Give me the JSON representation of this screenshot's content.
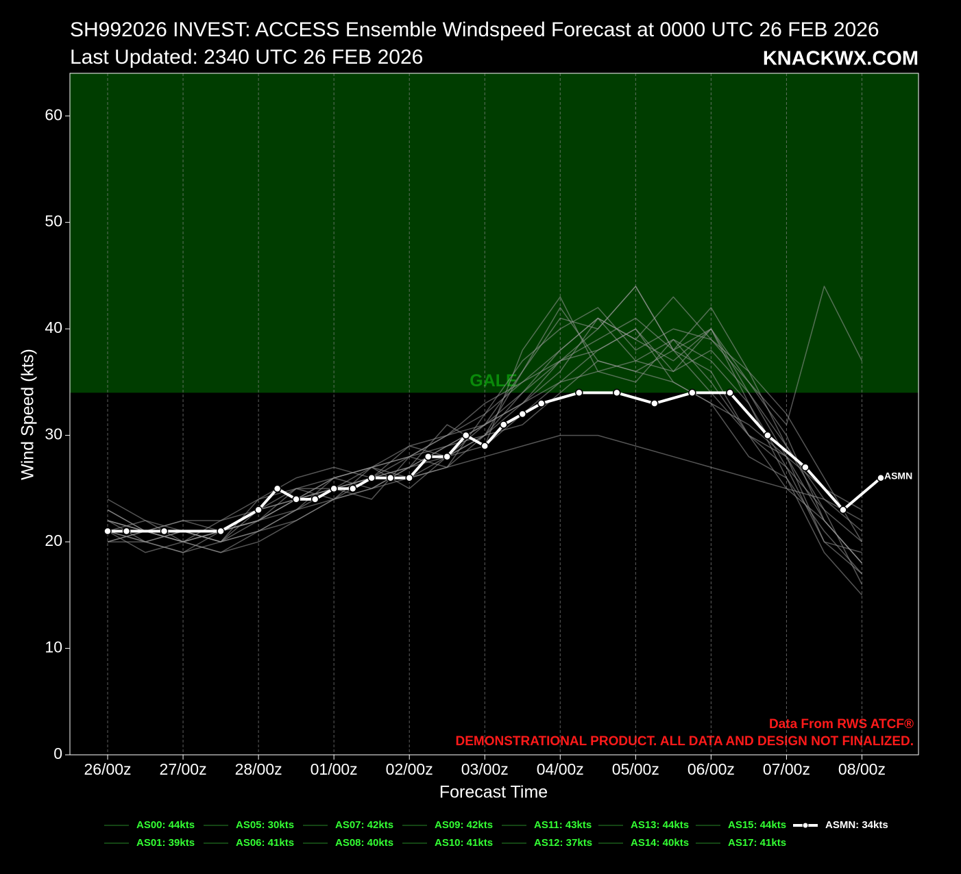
{
  "chart_data": {
    "type": "line",
    "title": "SH992026 INVEST: ACCESS Ensemble Windspeed Forecast at 0000 UTC 26 FEB 2026",
    "subtitle": "Last Updated: 2340 UTC 26 FEB 2026",
    "brand": "KNACKWX.COM",
    "x_label": "Forecast Time",
    "y_label": "Wind Speed (kts)",
    "xlim": [
      -12,
      258
    ],
    "ylim": [
      0,
      64
    ],
    "xticks": [
      {
        "value": 0,
        "label": "26/00z"
      },
      {
        "value": 24,
        "label": "27/00z"
      },
      {
        "value": 48,
        "label": "28/00z"
      },
      {
        "value": 72,
        "label": "01/00z"
      },
      {
        "value": 96,
        "label": "02/00z"
      },
      {
        "value": 120,
        "label": "03/00z"
      },
      {
        "value": 144,
        "label": "04/00z"
      },
      {
        "value": 168,
        "label": "05/00z"
      },
      {
        "value": 192,
        "label": "06/00z"
      },
      {
        "value": 216,
        "label": "07/00z"
      },
      {
        "value": 240,
        "label": "08/00z"
      }
    ],
    "yticks": [
      0,
      10,
      20,
      30,
      40,
      50,
      60
    ],
    "grid": "x",
    "gale": {
      "label": "GALE",
      "value": 34,
      "color": "#003d00"
    },
    "annotations": [
      "Data From RWS ATCF®",
      "DEMONSTRATIONAL PRODUCT. ALL DATA AND DESIGN NOT FINALIZED."
    ],
    "end_label": "ASMN",
    "member_x": [
      0,
      12,
      24,
      36,
      48,
      60,
      72,
      84,
      96,
      108,
      120,
      132,
      144,
      156,
      168,
      180,
      192,
      204,
      216,
      228,
      240
    ],
    "series": [
      {
        "name": "AS00: 44kts",
        "color": "#9a9a9a",
        "values": [
          23,
          21,
          22,
          21,
          22,
          25,
          25,
          27,
          26,
          27,
          30,
          36,
          41,
          40,
          44,
          38,
          36,
          30,
          28,
          20,
          17
        ]
      },
      {
        "name": "AS01: 39kts",
        "color": "#9a9a9a",
        "values": [
          21,
          20,
          19,
          20,
          21,
          23,
          24,
          26,
          27,
          29,
          31,
          33,
          35,
          36,
          37,
          39,
          35,
          30,
          25,
          22,
          18
        ]
      },
      {
        "name": "AS05: 30kts",
        "color": "#9a9a9a",
        "values": [
          22,
          21,
          20,
          19,
          20,
          22,
          24,
          25,
          26,
          27,
          28,
          29,
          30,
          30,
          29,
          28,
          27,
          26,
          25,
          24,
          22
        ]
      },
      {
        "name": "AS06: 41kts",
        "color": "#9a9a9a",
        "values": [
          20,
          21,
          20,
          22,
          23,
          24,
          25,
          24,
          28,
          27,
          32,
          35,
          38,
          41,
          37,
          36,
          40,
          33,
          27,
          20,
          19
        ]
      },
      {
        "name": "AS07: 42kts",
        "color": "#9a9a9a",
        "values": [
          24,
          22,
          21,
          20,
          24,
          26,
          27,
          26,
          29,
          28,
          31,
          36,
          42,
          37,
          36,
          38,
          34,
          30,
          27,
          23,
          20
        ]
      },
      {
        "name": "AS08: 40kts",
        "color": "#9a9a9a",
        "values": [
          21,
          19,
          20,
          21,
          22,
          23,
          26,
          27,
          25,
          28,
          30,
          34,
          37,
          38,
          40,
          35,
          33,
          28,
          26,
          21,
          17
        ]
      },
      {
        "name": "AS09: 42kts",
        "color": "#9a9a9a",
        "values": [
          22,
          20,
          21,
          20,
          23,
          25,
          24,
          27,
          28,
          30,
          32,
          37,
          40,
          42,
          38,
          40,
          39,
          36,
          29,
          24,
          21
        ]
      },
      {
        "name": "AS10: 41kts",
        "color": "#9a9a9a",
        "values": [
          20,
          20,
          19,
          21,
          22,
          24,
          25,
          26,
          27,
          29,
          30,
          33,
          36,
          41,
          39,
          37,
          40,
          35,
          30,
          22,
          18
        ]
      },
      {
        "name": "AS11: 43kts",
        "color": "#9a9a9a",
        "values": [
          21,
          22,
          20,
          21,
          22,
          24,
          26,
          25,
          27,
          31,
          29,
          38,
          43,
          36,
          35,
          39,
          37,
          33,
          26,
          19,
          15
        ]
      },
      {
        "name": "AS12: 37kts",
        "color": "#9a9a9a",
        "values": [
          22,
          21,
          21,
          20,
          21,
          23,
          25,
          26,
          26,
          28,
          30,
          31,
          34,
          37,
          36,
          35,
          33,
          31,
          28,
          25,
          23
        ]
      },
      {
        "name": "AS13: 44kts",
        "color": "#9a9a9a",
        "values": [
          23,
          21,
          22,
          22,
          24,
          25,
          26,
          27,
          29,
          30,
          33,
          35,
          37,
          40,
          44,
          38,
          42,
          36,
          32,
          26,
          20
        ]
      },
      {
        "name": "AS14: 40kts",
        "color": "#9a9a9a",
        "values": [
          20,
          21,
          20,
          19,
          21,
          22,
          24,
          25,
          27,
          28,
          29,
          32,
          35,
          38,
          40,
          36,
          38,
          34,
          29,
          23,
          16
        ]
      },
      {
        "name": "AS15: 44kts",
        "color": "#9a9a9a",
        "values": [
          21,
          20,
          21,
          20,
          22,
          24,
          25,
          26,
          28,
          29,
          31,
          34,
          38,
          41,
          39,
          43,
          39,
          35,
          31,
          44,
          37
        ]
      },
      {
        "name": "AS17: 41kts",
        "color": "#9a9a9a",
        "values": [
          22,
          21,
          20,
          21,
          23,
          24,
          26,
          27,
          28,
          30,
          31,
          33,
          37,
          39,
          41,
          38,
          40,
          34,
          28,
          22,
          18
        ]
      },
      {
        "name": "ASMN: 34kts",
        "color": "#ffffff",
        "markers": true,
        "x": [
          0,
          6,
          18,
          36,
          48,
          54,
          60,
          66,
          72,
          78,
          84,
          90,
          96,
          102,
          108,
          114,
          120,
          126,
          132,
          138,
          150,
          162,
          174,
          186,
          198,
          210,
          222,
          234,
          246
        ],
        "values": [
          21,
          21,
          21,
          21,
          23,
          25,
          24,
          24,
          25,
          25,
          26,
          26,
          26,
          28,
          28,
          30,
          29,
          31,
          32,
          33,
          34,
          34,
          33,
          34,
          34,
          30,
          27,
          23,
          26
        ]
      }
    ]
  }
}
